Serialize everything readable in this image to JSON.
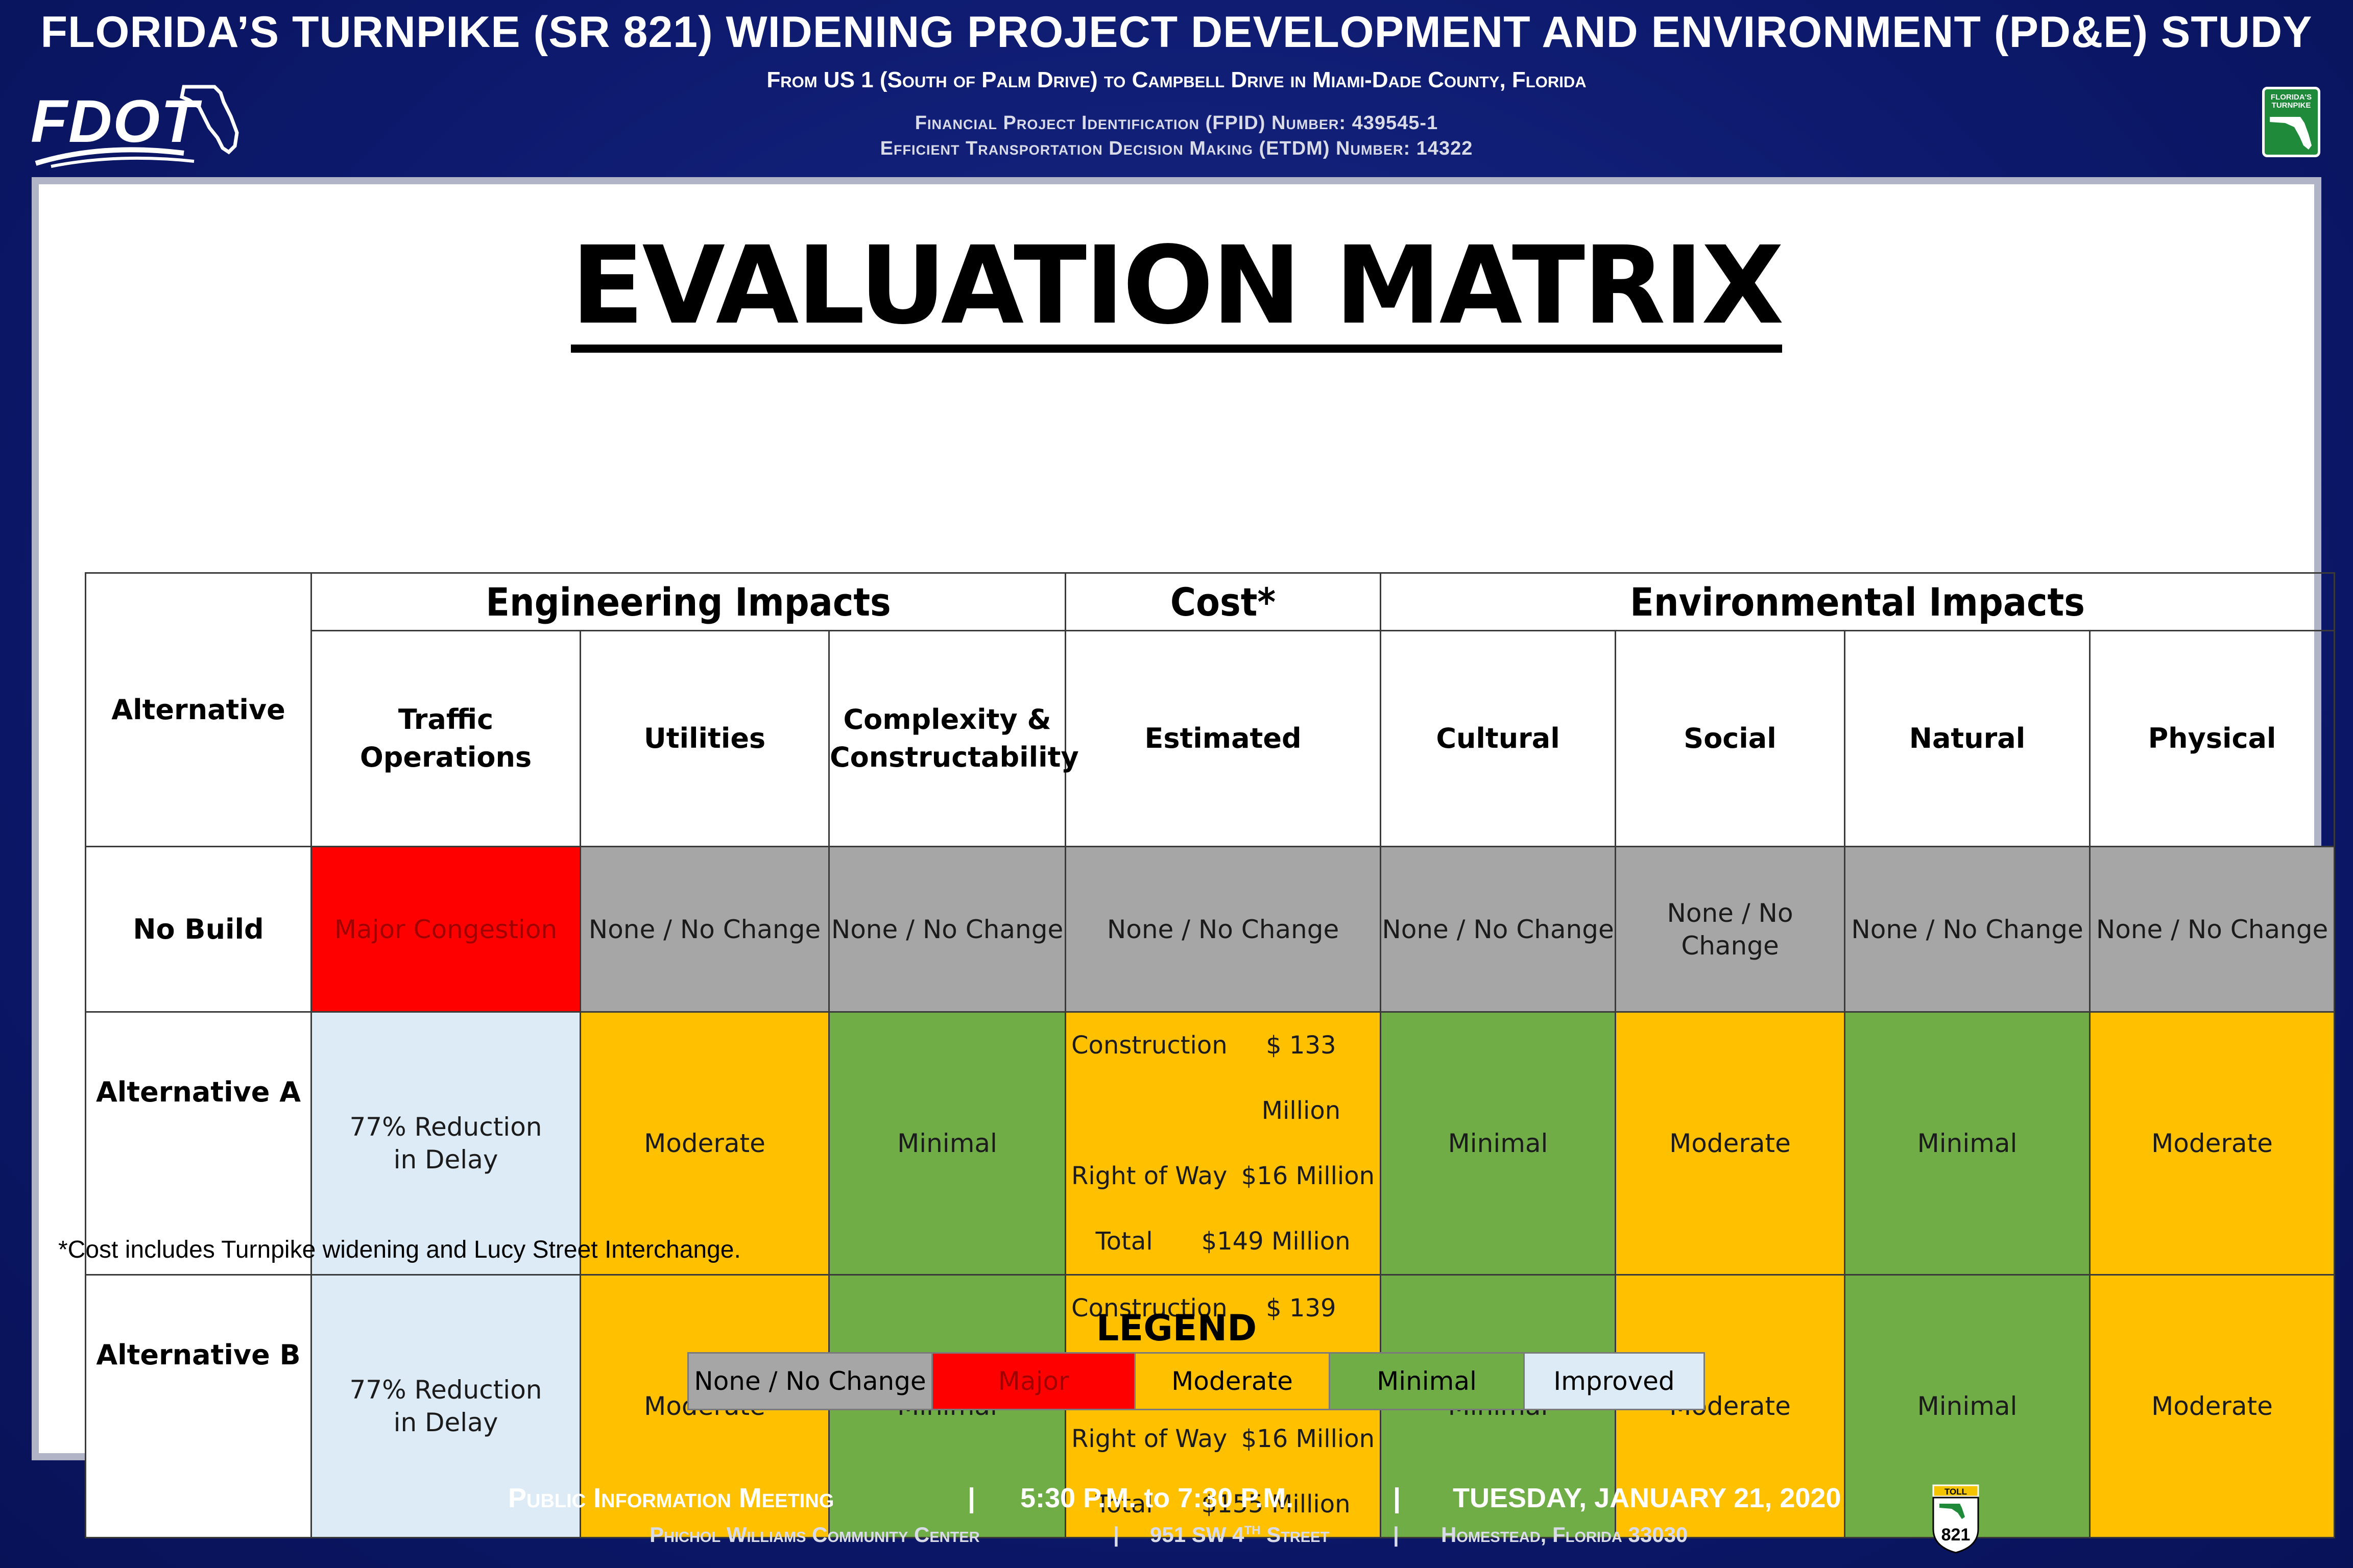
{
  "header": {
    "title": "FLORIDA’S TURNPIKE (SR 821) WIDENING PROJECT DEVELOPMENT AND ENVIRONMENT (PD&E) STUDY",
    "subtitle": "From US 1 (South of Palm Drive) to Campbell Drive in Miami-Dade County, Florida",
    "fpid": "Financial Project Identification (FPID) Number: 439545-1",
    "etdm": "Efficient Transportation Decision Making (ETDM) Number: 14322",
    "logo_left": "FDOT",
    "logo_right": "FLORIDA'S TURNPIKE"
  },
  "matrix": {
    "title": "EVALUATION MATRIX",
    "groups": {
      "alternative": "Alternative",
      "engineering": "Engineering Impacts",
      "cost": "Cost*",
      "environmental": "Environmental Impacts"
    },
    "columns": {
      "traffic": "Traffic Operations",
      "utilities": "Utilities",
      "complexity_1": "Complexity &",
      "complexity_2": "Constructability",
      "estimated": "Estimated",
      "cultural": "Cultural",
      "social": "Social",
      "natural": "Natural",
      "physical": "Physical"
    },
    "rows": {
      "no_build": {
        "label": "No Build",
        "traffic": "Major Congestion",
        "utilities": "None / No Change",
        "complexity": "None / No Change",
        "cost": "None / No Change",
        "cultural": "None / No Change",
        "social": "None / No Change",
        "natural": "None / No Change",
        "physical": "None / No Change"
      },
      "alt_a": {
        "label": "Alternative A",
        "traffic": "77% Reduction in Delay",
        "utilities": "Moderate",
        "complexity": "Minimal",
        "cost_construction_label": "Construction",
        "cost_construction": "$ 133 Million",
        "cost_row_label": "Right of Way",
        "cost_row": "$16 Million",
        "cost_total_label": "Total",
        "cost_total": "$149 Million",
        "cultural": "Minimal",
        "social": "Moderate",
        "natural": "Minimal",
        "physical": "Moderate"
      },
      "alt_b": {
        "label": "Alternative B",
        "traffic": "77% Reduction in Delay",
        "utilities": "Moderate",
        "complexity": "Minimal",
        "cost_construction_label": "Construction",
        "cost_construction": "$ 139 Million",
        "cost_row_label": "Right of Way",
        "cost_row": "$16 Million",
        "cost_total_label": "Total",
        "cost_total": "$155 Million",
        "cultural": "Minimal",
        "social": "Moderate",
        "natural": "Minimal",
        "physical": "Moderate"
      }
    },
    "footnote": "*Cost includes Turnpike widening and Lucy Street Interchange."
  },
  "legend": {
    "title": "LEGEND",
    "items": [
      {
        "label": "None / No Change",
        "color": "#a6a6a6"
      },
      {
        "label": "Major",
        "color": "#ff0000"
      },
      {
        "label": "Moderate",
        "color": "#ffc000"
      },
      {
        "label": "Minimal",
        "color": "#70ad47"
      },
      {
        "label": "Improved",
        "color": "#ddebf7"
      }
    ]
  },
  "footer": {
    "meeting": "Public Information Meeting",
    "time": "5:30 P.M. to 7:30 P.M.",
    "date": "TUESDAY, JANUARY 21, 2020",
    "venue": "Phichol Williams Community Center",
    "address_pre": "951 SW 4",
    "address_sup": "TH",
    "address_post": " Street",
    "city": "Homestead, Florida 33030",
    "separator": "|",
    "toll_label": "TOLL",
    "route_number": "821"
  },
  "colors": {
    "background": "#0d1a6e",
    "none": "#a6a6a6",
    "major": "#ff0000",
    "moderate": "#ffc000",
    "minimal": "#70ad47",
    "improved": "#ddebf7"
  }
}
